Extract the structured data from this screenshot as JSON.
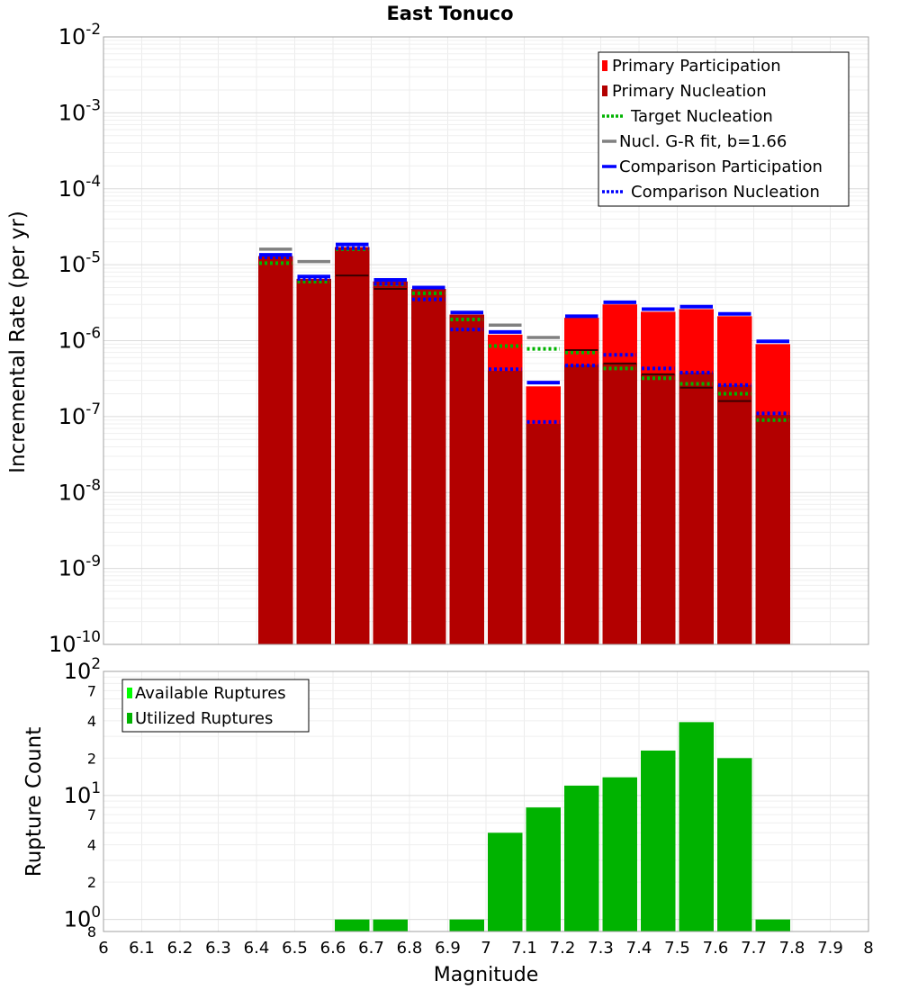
{
  "chart_data": [
    {
      "type": "bar",
      "title": "East Tonuco",
      "xlabel": "",
      "ylabel": "Incremental Rate (per yr)",
      "yscale": "log",
      "ylim": [
        1e-10,
        0.01
      ],
      "xlim": [
        6,
        8
      ],
      "y_tick_bases": [
        "10",
        "10",
        "10",
        "10",
        "10",
        "10",
        "10",
        "10",
        "10"
      ],
      "y_tick_exponents": [
        "-2",
        "-3",
        "-4",
        "-5",
        "-6",
        "-7",
        "-8",
        "-9",
        "-10"
      ],
      "y_tick_values": [
        0.01,
        0.001,
        0.0001,
        1e-05,
        1e-06,
        1e-07,
        1e-08,
        1e-09,
        1e-10
      ],
      "grid": true,
      "legend_position": "top-right",
      "legend": [
        {
          "label": "Primary Participation",
          "color": "#ff0000",
          "style": "bar"
        },
        {
          "label": "Primary Nucleation",
          "color": "#b30000",
          "style": "bar"
        },
        {
          "label": "Target Nucleation",
          "color": "#00b300",
          "style": "dotted"
        },
        {
          "label": "Nucl. G-R fit, b=1.66",
          "color": "#808080",
          "style": "solid"
        },
        {
          "label": "Comparison Participation",
          "color": "#0000ff",
          "style": "solid"
        },
        {
          "label": "Comparison Nucleation",
          "color": "#0000ff",
          "style": "dotted"
        }
      ],
      "x": [
        6.45,
        6.55,
        6.65,
        6.75,
        6.85,
        6.95,
        7.05,
        7.15,
        7.25,
        7.35,
        7.45,
        7.55,
        7.65,
        7.75
      ],
      "series": [
        {
          "name": "Primary Participation",
          "color": "#ff0000",
          "values": [
            1.3e-05,
            6.5e-06,
            1.7e-05,
            6e-06,
            4.8e-06,
            2.2e-06,
            1.2e-06,
            2.5e-07,
            2e-06,
            3e-06,
            2.4e-06,
            2.6e-06,
            2.1e-06,
            9e-07
          ]
        },
        {
          "name": "Primary Nucleation",
          "color": "#b30000",
          "values": [
            1.3e-05,
            6.5e-06,
            1.7e-05,
            6e-06,
            4.8e-06,
            2.2e-06,
            4e-07,
            8e-08,
            4.8e-07,
            5e-07,
            3.6e-07,
            3.8e-07,
            2.6e-07,
            1.05e-07
          ]
        },
        {
          "name": "Target Nucleation",
          "color": "#00b300",
          "values": [
            1.05e-05,
            6e-06,
            1.6e-05,
            5.5e-06,
            4.2e-06,
            1.9e-06,
            8.5e-07,
            7.8e-07,
            7e-07,
            4.3e-07,
            3.2e-07,
            2.7e-07,
            2e-07,
            9e-08
          ]
        },
        {
          "name": "Nucl. G-R fit, b=1.66",
          "color": "#808080",
          "values": [
            1.6e-05,
            1.1e-05,
            null,
            null,
            null,
            null,
            1.6e-06,
            1.1e-06,
            null,
            null,
            null,
            null,
            null,
            null
          ]
        },
        {
          "name": "Comparison Participation",
          "color": "#0000ff",
          "values": [
            1.35e-05,
            7e-06,
            1.85e-05,
            6.3e-06,
            5e-06,
            2.35e-06,
            1.3e-06,
            2.8e-07,
            2.1e-06,
            3.2e-06,
            2.6e-06,
            2.8e-06,
            2.25e-06,
            9.8e-07
          ]
        },
        {
          "name": "Comparison Nucleation",
          "color": "#0000ff",
          "values": [
            1.25e-05,
            6.5e-06,
            1.65e-05,
            5.6e-06,
            3.5e-06,
            1.4e-06,
            4.2e-07,
            8.5e-08,
            4.7e-07,
            6.5e-07,
            4.3e-07,
            3.8e-07,
            2.6e-07,
            1.1e-07
          ]
        },
        {
          "name": "",
          "color": "#000000",
          "values": [
            null,
            null,
            7.2e-06,
            4.8e-06,
            null,
            null,
            null,
            null,
            7.5e-07,
            5e-07,
            3.6e-07,
            2.4e-07,
            1.6e-07,
            null
          ]
        }
      ]
    },
    {
      "type": "bar",
      "title": "",
      "xlabel": "Magnitude",
      "ylabel": "Rupture Count",
      "yscale": "log",
      "ylim": [
        0.8,
        100
      ],
      "xlim": [
        6,
        8
      ],
      "x_ticks": [
        "6",
        "6.1",
        "6.2",
        "6.3",
        "6.4",
        "6.5",
        "6.6",
        "6.7",
        "6.8",
        "6.9",
        "7",
        "7.1",
        "7.2",
        "7.3",
        "7.4",
        "7.5",
        "7.6",
        "7.7",
        "7.8",
        "7.9",
        "8"
      ],
      "y_major_bases": [
        "10",
        "10",
        "10"
      ],
      "y_major_exponents": [
        "2",
        "1",
        "0"
      ],
      "y_major_values": [
        100,
        10,
        1
      ],
      "y_minor_labels": [
        "7",
        "4",
        "2",
        "7",
        "4",
        "2",
        "8"
      ],
      "y_minor_values": [
        70,
        40,
        20,
        7,
        4,
        2,
        0.8
      ],
      "grid": true,
      "legend_position": "top-left",
      "legend": [
        {
          "label": "Available Ruptures",
          "color": "#00ff00"
        },
        {
          "label": "Utilized Ruptures",
          "color": "#00b300"
        }
      ],
      "x": [
        6.65,
        6.75,
        6.95,
        7.05,
        7.15,
        7.25,
        7.35,
        7.45,
        7.55,
        7.65,
        7.75
      ],
      "series": [
        {
          "name": "Utilized Ruptures",
          "color": "#00b300",
          "values": [
            1,
            1,
            1,
            5,
            8,
            12,
            14,
            23,
            39,
            20,
            1
          ]
        }
      ]
    }
  ]
}
